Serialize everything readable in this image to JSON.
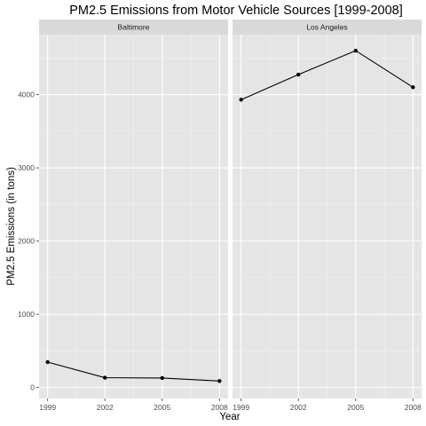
{
  "chart_data": {
    "type": "line",
    "title": "PM2.5 Emissions from Motor Vehicle Sources [1999-2008]",
    "xlabel": "Year",
    "ylabel": "PM2.5 Emissions (in tons)",
    "x_ticks": [
      1999,
      2002,
      2005,
      2008
    ],
    "y_ticks": [
      0,
      1000,
      2000,
      3000,
      4000
    ],
    "xlim": [
      1998.55,
      2008.45
    ],
    "ylim": [
      -150,
      4820
    ],
    "grid": true,
    "line_color": "#000000",
    "panel_background": "#e5e5e5",
    "strip_background": "#d9d9d9",
    "panels": [
      {
        "name": "Baltimore",
        "x": [
          1999,
          2002,
          2005,
          2008
        ],
        "values": [
          347,
          134,
          130,
          89
        ]
      },
      {
        "name": "Los Angeles",
        "x": [
          1999,
          2002,
          2005,
          2008
        ],
        "values": [
          3931,
          4274,
          4601,
          4101
        ]
      }
    ]
  }
}
